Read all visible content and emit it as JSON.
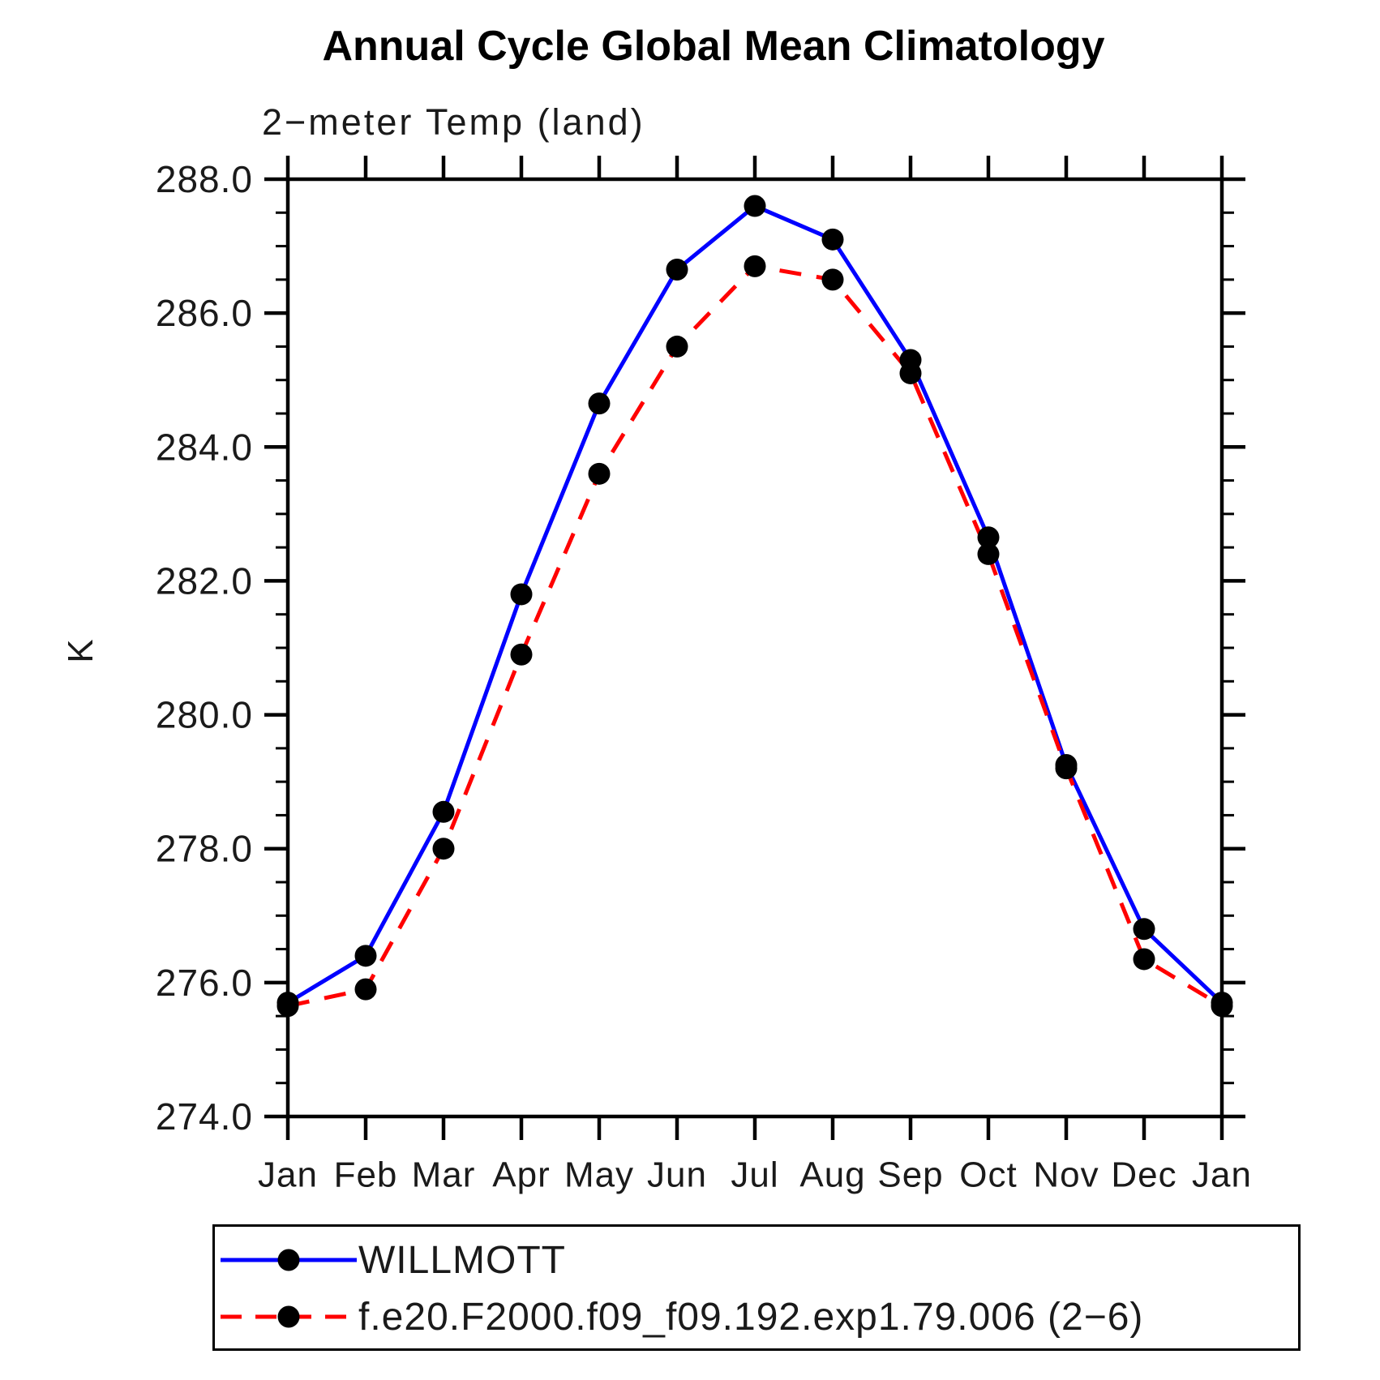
{
  "title": "Annual Cycle Global Mean Climatology",
  "subtitle": "2−meter Temp (land)",
  "y_axis": {
    "label": "K",
    "ticks": [
      {
        "value": 288.0,
        "label": "288.0"
      },
      {
        "value": 286.0,
        "label": "286.0"
      },
      {
        "value": 284.0,
        "label": "284.0"
      },
      {
        "value": 282.0,
        "label": "282.0"
      },
      {
        "value": 280.0,
        "label": "280.0"
      },
      {
        "value": 278.0,
        "label": "278.0"
      },
      {
        "value": 276.0,
        "label": "276.0"
      },
      {
        "value": 274.0,
        "label": "274.0"
      }
    ]
  },
  "x_axis": {
    "categories": [
      "Jan",
      "Feb",
      "Mar",
      "Apr",
      "May",
      "Jun",
      "Jul",
      "Aug",
      "Sep",
      "Oct",
      "Nov",
      "Dec",
      "Jan"
    ]
  },
  "legend": {
    "entries": [
      {
        "key": "willmott",
        "label": "WILLMOTT",
        "color": "#0000ff",
        "line_style": "solid"
      },
      {
        "key": "model",
        "label": "f.e20.F2000.f09_f09.192.exp1.79.006 (2−6)",
        "color": "#ff0000",
        "line_style": "dashed"
      }
    ]
  },
  "colors": {
    "axis": "#000000",
    "marker": "#000000",
    "willmott_line": "#0000ff",
    "model_line": "#ff0000",
    "background": "#ffffff"
  },
  "chart_data": {
    "type": "line",
    "title": "Annual Cycle Global Mean Climatology",
    "subtitle": "2-meter Temp (land)",
    "xlabel": "",
    "ylabel": "K",
    "ylim": [
      274.0,
      288.0
    ],
    "y_major_tick_step": 2.0,
    "y_minor_tick_step": 0.5,
    "grid": false,
    "legend_position": "bottom",
    "x": [
      "Jan",
      "Feb",
      "Mar",
      "Apr",
      "May",
      "Jun",
      "Jul",
      "Aug",
      "Sep",
      "Oct",
      "Nov",
      "Dec",
      "Jan"
    ],
    "series": [
      {
        "name": "WILLMOTT",
        "color": "#0000ff",
        "style": "solid",
        "marker": "filled-circle",
        "values": [
          275.7,
          276.4,
          278.55,
          281.8,
          284.65,
          286.65,
          287.6,
          287.1,
          285.3,
          282.65,
          279.25,
          276.8,
          275.7
        ]
      },
      {
        "name": "f.e20.F2000.f09_f09.192.exp1.79.006 (2-6)",
        "color": "#ff0000",
        "style": "dashed",
        "marker": "filled-circle",
        "values": [
          275.65,
          275.9,
          278.0,
          280.9,
          283.6,
          285.5,
          286.7,
          286.5,
          285.1,
          282.4,
          279.2,
          276.35,
          275.65
        ]
      }
    ]
  }
}
